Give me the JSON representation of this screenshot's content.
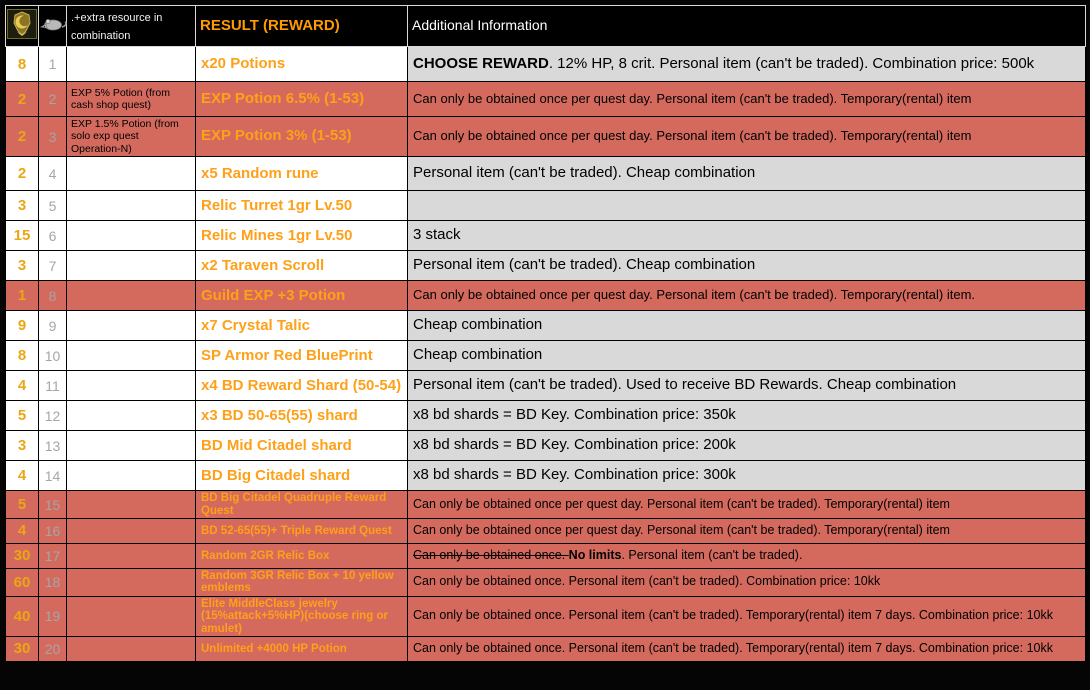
{
  "table": {
    "header": {
      "col1_icon": "gold-emblem-icon",
      "col2_icon": "rat-icon",
      "col3": ".+extra resource in combination",
      "col4": "RESULT (REWARD)",
      "col5": "Additional Information"
    },
    "colors": {
      "highlight_row": "#d4695e",
      "info_cell": "#d9d9d9",
      "reward_text": "#ffa019",
      "qty_text": "#eaa713",
      "header_result_text": "#ff9b00",
      "header_bg": "#000000"
    },
    "rows": [
      {
        "qty": "8",
        "num": "1",
        "extra": "",
        "reward": "x20 Potions",
        "highlight": false,
        "compact": false,
        "info": [
          {
            "t": "CHOOSE REWARD",
            "bold": true
          },
          {
            "t": ". 12% HP, 8 crit. Personal item (can't be traded). Combination price: 500k"
          }
        ]
      },
      {
        "qty": "2",
        "num": "2",
        "extra": "EXP 5% Potion (from cash shop quest)",
        "reward": "EXP Potion 6.5% (1-53)",
        "highlight": true,
        "compact": false,
        "info": "Can only be obtained once per quest day. Personal item (can't be traded). Temporary(rental) item"
      },
      {
        "qty": "2",
        "num": "3",
        "extra": "EXP 1.5% Potion (from solo exp quest Operation-N)",
        "reward": "EXP Potion 3% (1-53)",
        "highlight": true,
        "compact": false,
        "info": "Can only be obtained once per quest day. Personal item (can't be traded). Temporary(rental) item"
      },
      {
        "qty": "2",
        "num": "4",
        "extra": "",
        "reward": "x5 Random rune",
        "highlight": false,
        "compact": false,
        "info": "Personal item (can't be traded). Cheap combination"
      },
      {
        "qty": "3",
        "num": "5",
        "extra": "",
        "reward": "Relic Turret 1gr Lv.50",
        "highlight": false,
        "compact": false,
        "info": ""
      },
      {
        "qty": "15",
        "num": "6",
        "extra": "",
        "reward": "Relic Mines 1gr Lv.50",
        "highlight": false,
        "compact": false,
        "info": "3 stack"
      },
      {
        "qty": "3",
        "num": "7",
        "extra": "",
        "reward": "x2 Taraven Scroll",
        "highlight": false,
        "compact": false,
        "info": "Personal item (can't be traded). Cheap combination"
      },
      {
        "qty": "1",
        "num": "8",
        "extra": "",
        "reward": "Guild EXP +3 Potion",
        "highlight": true,
        "compact": false,
        "info": "Can only be obtained once per quest day. Personal item (can't be traded). Temporary(rental) item."
      },
      {
        "qty": "9",
        "num": "9",
        "extra": "",
        "reward": "x7 Crystal Talic",
        "highlight": false,
        "compact": false,
        "info": "Cheap combination"
      },
      {
        "qty": "8",
        "num": "10",
        "extra": "",
        "reward": "SP Armor Red BluePrint",
        "highlight": false,
        "compact": false,
        "info": "Cheap combination"
      },
      {
        "qty": "4",
        "num": "11",
        "extra": "",
        "reward": "x4 BD Reward Shard (50-54)",
        "highlight": false,
        "compact": false,
        "info": "Personal item (can't be traded). Used to receive BD Rewards. Cheap combination"
      },
      {
        "qty": "5",
        "num": "12",
        "extra": "",
        "reward": "x3 BD 50-65(55) shard",
        "highlight": false,
        "compact": false,
        "info": "x8 bd shards = BD Key. Combination price: 350k"
      },
      {
        "qty": "3",
        "num": "13",
        "extra": "",
        "reward": "BD Mid Citadel shard",
        "highlight": false,
        "compact": false,
        "info": "x8 bd shards = BD Key. Combination price: 200k"
      },
      {
        "qty": "4",
        "num": "14",
        "extra": "",
        "reward": "BD Big Citadel shard",
        "highlight": false,
        "compact": false,
        "info": "x8 bd shards = BD Key. Combination price: 300k"
      },
      {
        "qty": "5",
        "num": "15",
        "extra": "",
        "reward": "BD Big Citadel Quadruple Reward Quest",
        "highlight": true,
        "compact": true,
        "info": "Can only be obtained once per quest day. Personal item (can't be traded). Temporary(rental) item"
      },
      {
        "qty": "4",
        "num": "16",
        "extra": "",
        "reward": "BD 52-65(55)+ Triple Reward Quest",
        "highlight": true,
        "compact": true,
        "info": "Can only be obtained once per quest day. Personal item (can't be traded). Temporary(rental) item"
      },
      {
        "qty": "30",
        "num": "17",
        "extra": "",
        "reward": "Random 2GR Relic Box",
        "highlight": true,
        "compact": true,
        "info": [
          {
            "t": "Can only be obtained once. ",
            "strike": true
          },
          {
            "t": "No limits",
            "bold": true
          },
          {
            "t": ". Personal item (can't be traded)."
          }
        ]
      },
      {
        "qty": "60",
        "num": "18",
        "extra": "",
        "reward": "Random 3GR Relic Box + 10 yellow emblems",
        "highlight": true,
        "compact": true,
        "info": "Can only be obtained once. Personal item (can't be traded). Combination price: 10kk"
      },
      {
        "qty": "40",
        "num": "19",
        "extra": "",
        "reward": "Elite MiddleClass jewelry (15%attack+5%HP)(choose ring or amulet)",
        "highlight": true,
        "compact": true,
        "info": "Can only be obtained once. Personal item (can't be traded). Temporary(rental) item 7 days. Combination price: 10kk"
      },
      {
        "qty": "30",
        "num": "20",
        "extra": "",
        "reward": "Unlimited +4000 HP Potion",
        "highlight": true,
        "compact": true,
        "info": "Can only be obtained once. Personal item (can't be traded). Temporary(rental) item 7 days. Combination price: 10kk"
      }
    ]
  }
}
